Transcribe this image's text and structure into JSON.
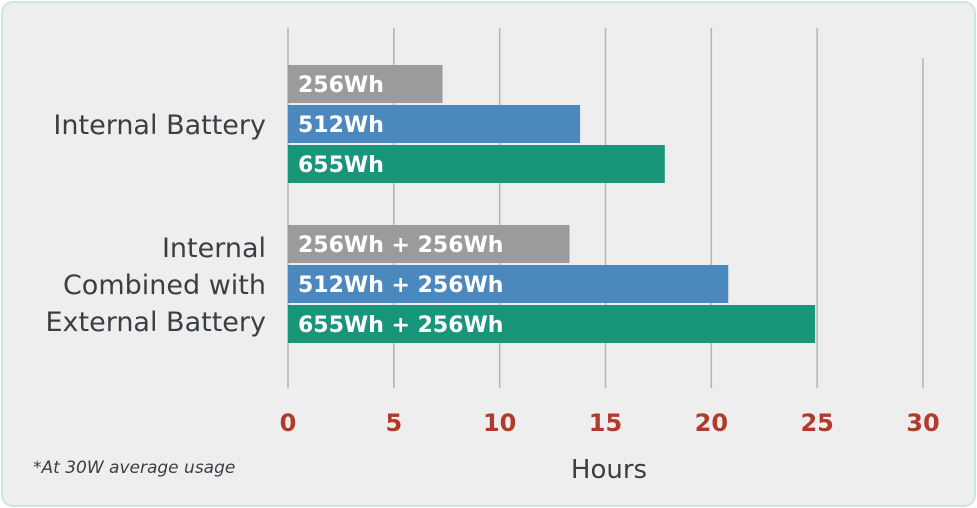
{
  "chart_data": {
    "type": "bar",
    "orientation": "horizontal",
    "categories": [
      [
        "Internal Battery"
      ],
      [
        "Internal",
        "Combined with",
        "External Battery"
      ]
    ],
    "bars": [
      [
        {
          "label": "256Wh",
          "value": 7.3,
          "color": "#9a9b9d"
        },
        {
          "label": "512Wh",
          "value": 13.8,
          "color": "#4b88be"
        },
        {
          "label": "655Wh",
          "value": 17.8,
          "color": "#17967a"
        }
      ],
      [
        {
          "label": "256Wh + 256Wh",
          "value": 13.3,
          "color": "#9a9b9d"
        },
        {
          "label": "512Wh + 256Wh",
          "value": 20.8,
          "color": "#4b88be"
        },
        {
          "label": "655Wh + 256Wh",
          "value": 24.9,
          "color": "#17967a"
        }
      ]
    ],
    "xticks": [
      0,
      5,
      10,
      15,
      20,
      25,
      30
    ],
    "xlim": [
      0,
      30
    ],
    "xlabel": "Hours",
    "grid": true,
    "tick_color": "#b23a2a",
    "footnote": "*At 30W average usage"
  }
}
